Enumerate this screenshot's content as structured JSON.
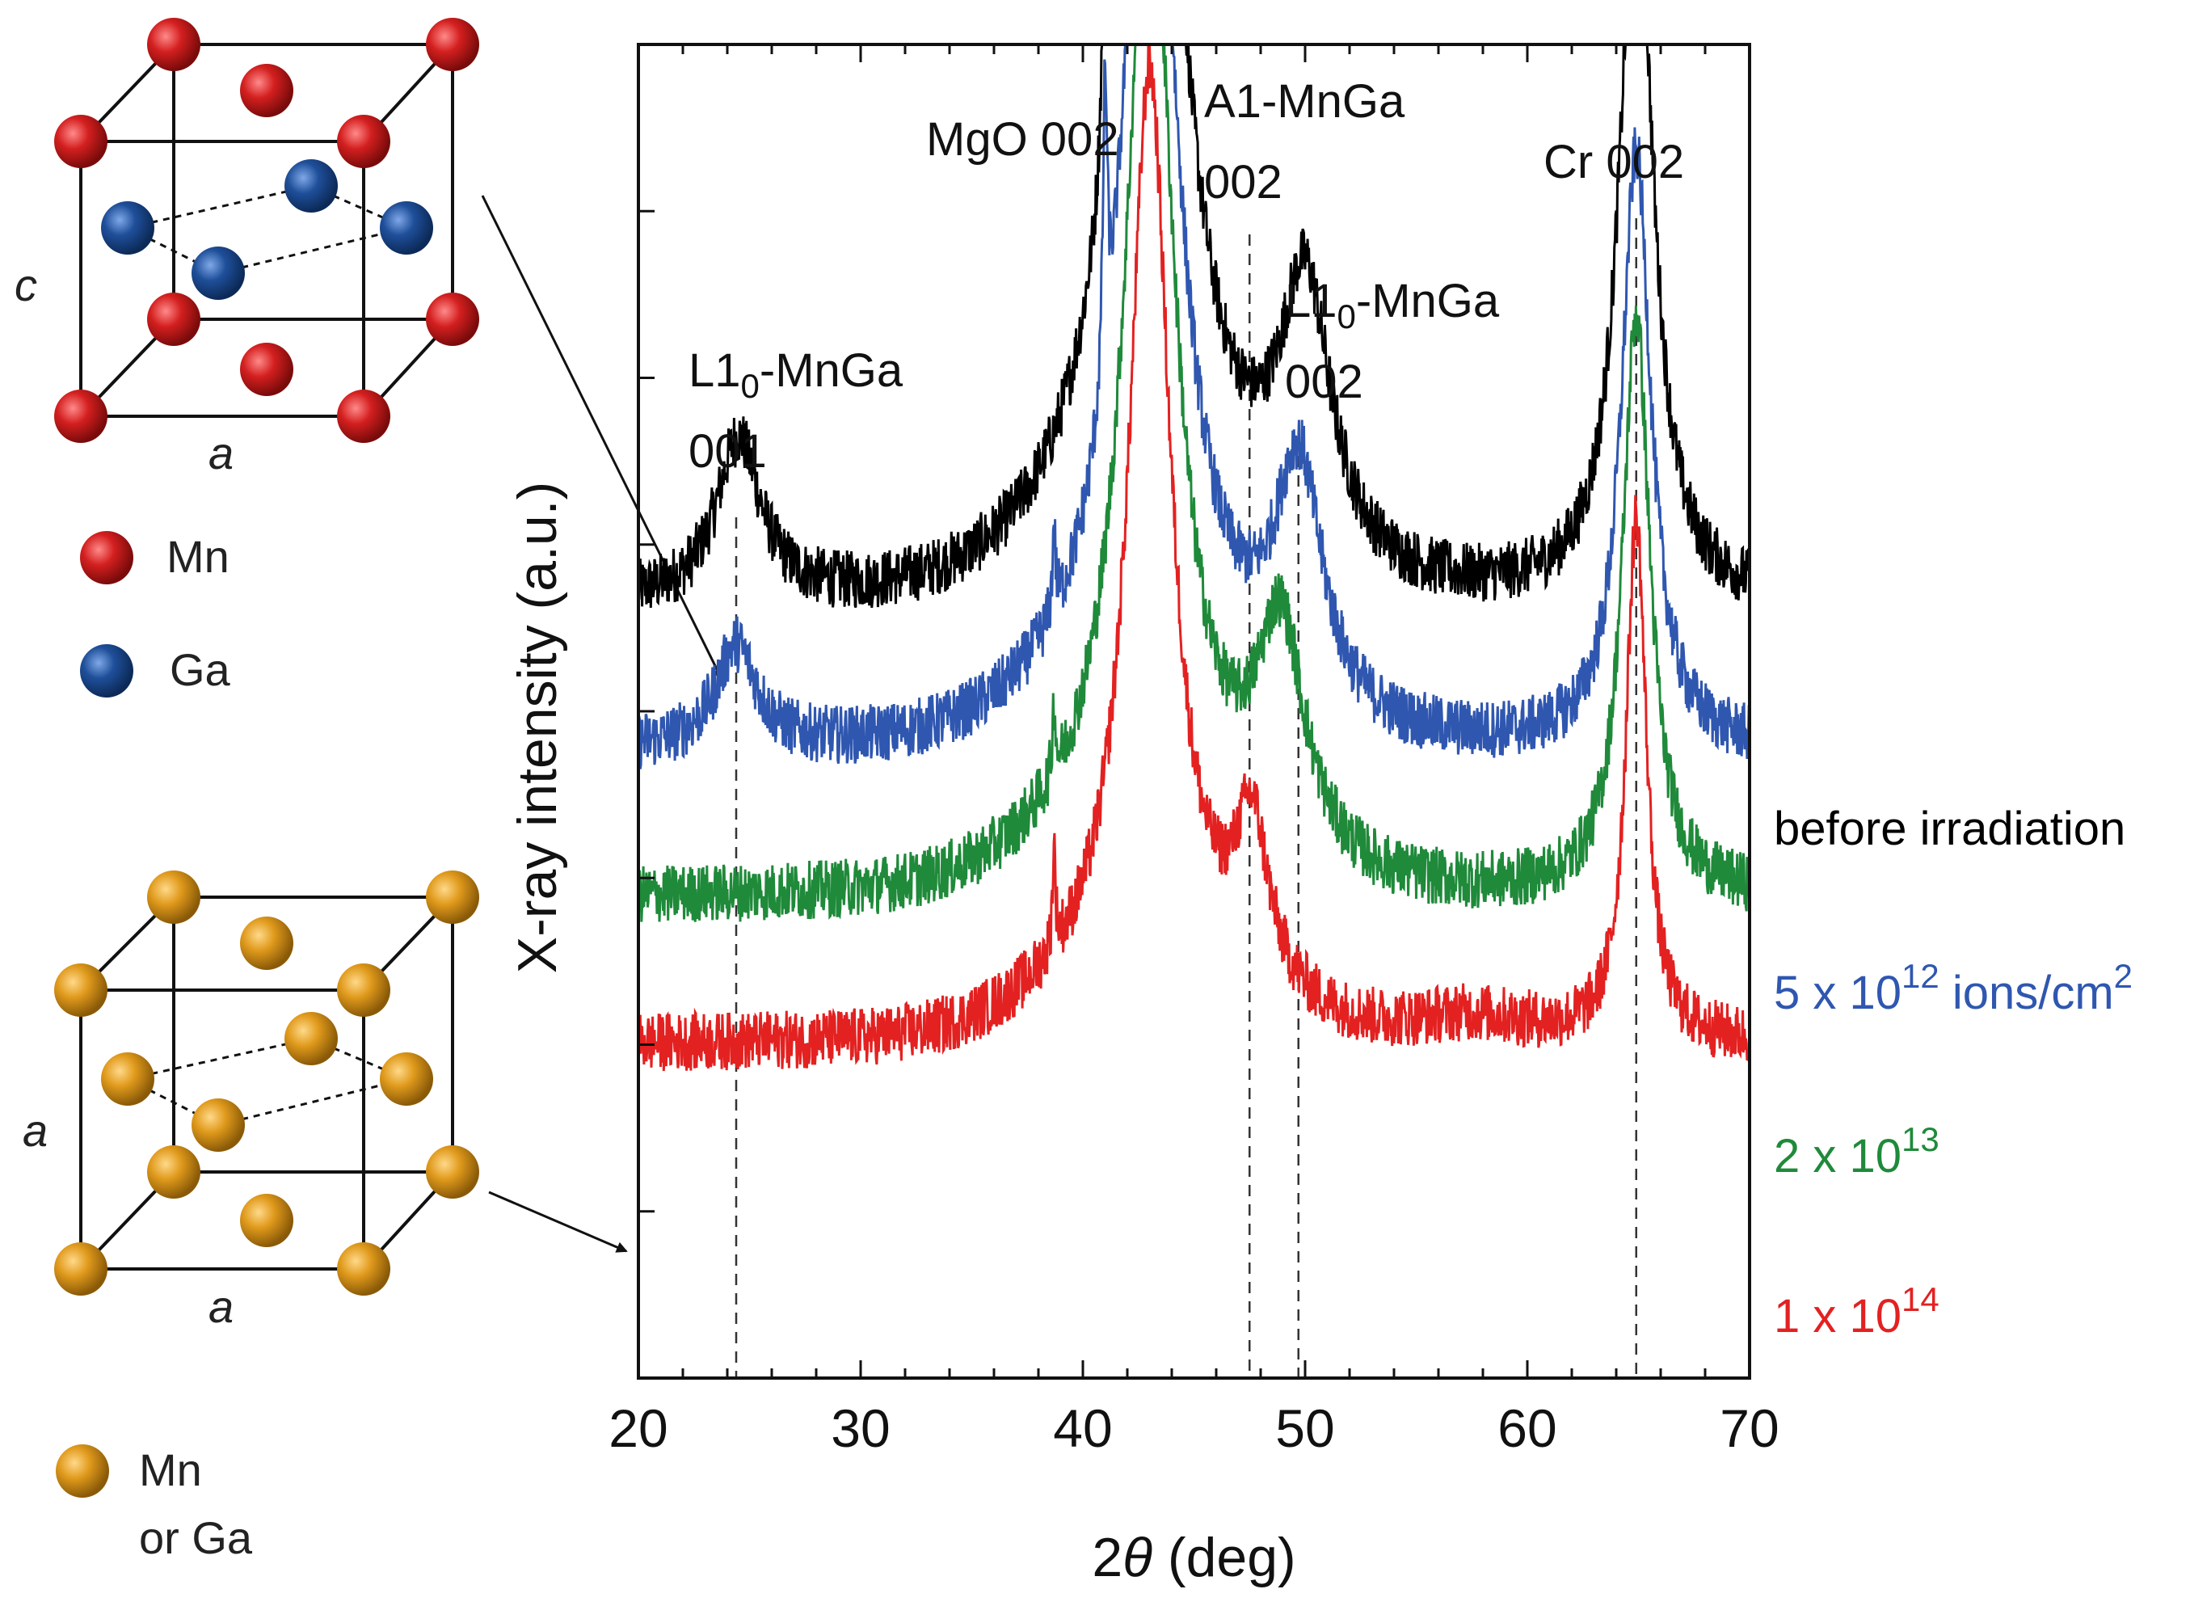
{
  "chart_data": {
    "type": "line",
    "xlabel_prefix": "2",
    "xlabel_symbol": "θ",
    "xlabel_suffix": " (deg)",
    "ylabel": "X-ray intensity (a.u.)",
    "xlim": [
      20,
      70
    ],
    "xticks": [
      "20",
      "30",
      "40",
      "50",
      "60",
      "70"
    ],
    "yscale": "log",
    "y_ticks_labeled": false,
    "reference_lines": [
      {
        "x": 24.4,
        "label_main": "L1",
        "label_sub": "0",
        "label_rest": "-MnGa",
        "label_line2": "001"
      },
      {
        "x": 47.5,
        "label_main": "A1-MnGa",
        "label_sub": "",
        "label_rest": "",
        "label_line2": "002"
      },
      {
        "x": 49.7,
        "label_main": "L1",
        "label_sub": "0",
        "label_rest": "-MnGa",
        "label_line2": "002"
      },
      {
        "x": 64.9,
        "label_main": "Cr 002",
        "label_sub": "",
        "label_rest": "",
        "label_line2": ""
      }
    ],
    "substrate_peak": {
      "x": 43.0,
      "label": "MgO 002"
    },
    "series": [
      {
        "name": "before irradiation",
        "label_base": "before irradiation",
        "label_sup": "",
        "label_unit": "",
        "color": "#000000",
        "baseline": 0.58,
        "noise": 0.022,
        "peaks": [
          {
            "x": 24.5,
            "height": 0.55,
            "width": 1.2
          },
          {
            "x": 41.0,
            "height": 1.2,
            "width": 0.12
          },
          {
            "x": 43.0,
            "height": 3.5,
            "width": 1.6
          },
          {
            "x": 50.0,
            "height": 0.95,
            "width": 1.4
          },
          {
            "x": 64.9,
            "height": 2.55,
            "width": 0.9
          }
        ]
      },
      {
        "name": "5 x 10^12 ions/cm^2",
        "label_base": "5 x 10",
        "label_sup": "12",
        "label_unit": " ions/cm",
        "label_unit_sup": "2",
        "color": "#2f57b0",
        "baseline": 0.47,
        "noise": 0.022,
        "peaks": [
          {
            "x": 24.4,
            "height": 0.35,
            "width": 1.1
          },
          {
            "x": 38.7,
            "height": 0.3,
            "width": 0.08
          },
          {
            "x": 41.0,
            "height": 1.0,
            "width": 0.12
          },
          {
            "x": 43.0,
            "height": 3.4,
            "width": 1.4
          },
          {
            "x": 49.7,
            "height": 0.85,
            "width": 1.3
          },
          {
            "x": 64.9,
            "height": 2.05,
            "width": 0.8
          }
        ]
      },
      {
        "name": "2 x 10^13",
        "label_base": "2 x 10",
        "label_sup": "13",
        "label_unit": "",
        "label_unit_sup": "",
        "color": "#1f8a3a",
        "baseline": 0.36,
        "noise": 0.022,
        "peaks": [
          {
            "x": 38.7,
            "height": 0.25,
            "width": 0.08
          },
          {
            "x": 43.0,
            "height": 3.3,
            "width": 1.3
          },
          {
            "x": 48.9,
            "height": 0.78,
            "width": 1.3
          },
          {
            "x": 64.9,
            "height": 2.0,
            "width": 0.75
          }
        ]
      },
      {
        "name": "1 x 10^14",
        "label_base": "1 x 10",
        "label_sup": "14",
        "label_unit": "",
        "label_unit_sup": "",
        "color": "#e32121",
        "baseline": 0.25,
        "noise": 0.022,
        "peaks": [
          {
            "x": 38.7,
            "height": 0.35,
            "width": 0.08
          },
          {
            "x": 43.0,
            "height": 3.1,
            "width": 1.1
          },
          {
            "x": 47.6,
            "height": 0.55,
            "width": 0.9
          },
          {
            "x": 57.5,
            "height": 0.08,
            "width": 3.5
          },
          {
            "x": 64.9,
            "height": 1.8,
            "width": 0.55
          }
        ]
      }
    ]
  },
  "structures": {
    "top": {
      "edge_label_side": "c",
      "edge_label_bottom": "a",
      "legend": [
        {
          "name": "Mn",
          "color": "#cc1f1f"
        },
        {
          "name": "Ga",
          "color": "#1f4f9a"
        }
      ]
    },
    "bottom": {
      "edge_label_side": "a",
      "edge_label_bottom": "a",
      "legend": [
        {
          "name": "Mn",
          "name_line2": "or Ga",
          "color": "#e09a1c"
        }
      ]
    }
  }
}
